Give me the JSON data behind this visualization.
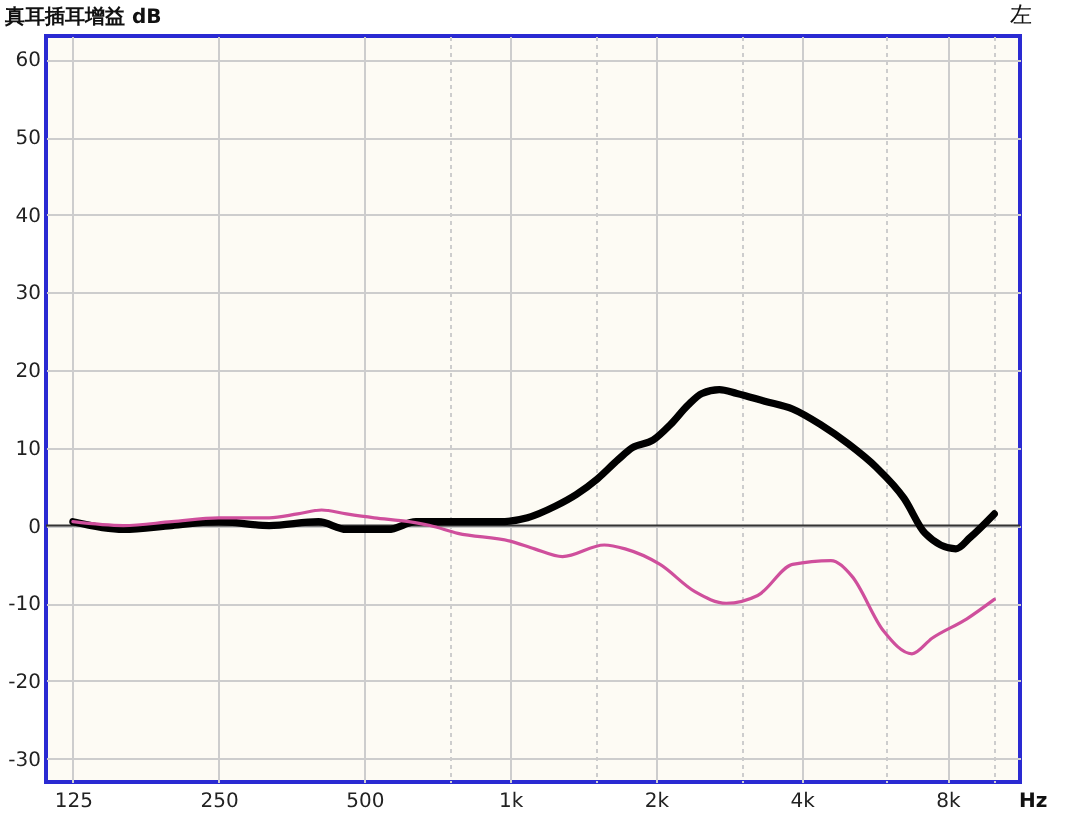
{
  "chart_data": {
    "type": "line",
    "ylabel": "真耳插耳增益 dB",
    "xlabel": "Hz",
    "annotations": [
      "左"
    ],
    "log": "x",
    "xlim": [
      110,
      11300
    ],
    "xticks": [
      125,
      250,
      500,
      {
        "value": 750,
        "label": null
      },
      {
        "value": 1000,
        "label": "1k"
      },
      {
        "value": 1500,
        "label": null
      },
      {
        "value": 2000,
        "label": "2k"
      },
      {
        "value": 3000,
        "label": null
      },
      {
        "value": 4000,
        "label": "4k"
      },
      {
        "value": 6000,
        "label": null
      },
      {
        "value": 8000,
        "label": "8k"
      },
      {
        "value": 10000,
        "label": null
      }
    ],
    "ylim": [
      -33,
      63
    ],
    "yticks": [
      -30,
      -20,
      -10,
      0,
      10,
      20,
      30,
      40,
      50,
      60
    ],
    "grid": true,
    "ref_lines": [
      {
        "axis": "y",
        "value": 0,
        "color": "#333333"
      }
    ],
    "series": [
      {
        "color": "#000000",
        "x": [
          125,
          159,
          200,
          250,
          318,
          402,
          459,
          507,
          560,
          639,
          754,
          951,
          1086,
          1240,
          1370,
          1514,
          1672,
          1787,
          1974,
          2144,
          2330,
          2490,
          2705,
          2939,
          3355,
          3831,
          4375,
          4996,
          5704,
          6511,
          7195,
          8330,
          8925,
          10000
        ],
        "values": [
          0.5,
          -0.5,
          0,
          0.5,
          0,
          0.5,
          -0.5,
          -0.5,
          -0.5,
          0.5,
          0.5,
          0.5,
          1,
          2.5,
          4,
          6,
          8.5,
          10,
          11,
          13,
          15.5,
          17,
          17.5,
          17,
          16,
          15,
          13,
          10.5,
          7.5,
          3.5,
          -1,
          -3,
          -1.5,
          1.5
        ]
      },
      {
        "color": "#cf4f9c",
        "x": [
          125,
          159,
          200,
          250,
          318,
          364,
          408,
          459,
          524,
          618,
          683,
          780,
          1000,
          1123,
          1283,
          1565,
          1728,
          2040,
          2408,
          2795,
          3246,
          3831,
          4598,
          5079,
          5896,
          6760,
          7437,
          8778,
          10000
        ],
        "values": [
          0.5,
          0,
          0.5,
          1,
          1,
          1.5,
          2,
          1.5,
          1,
          0.5,
          0,
          -1,
          -2,
          -3,
          -4,
          -2.5,
          -3,
          -5,
          -8.5,
          -10,
          -9,
          -5,
          -4.5,
          -6.5,
          -13.5,
          -16.5,
          -14.5,
          -12,
          -9.5
        ]
      }
    ]
  }
}
